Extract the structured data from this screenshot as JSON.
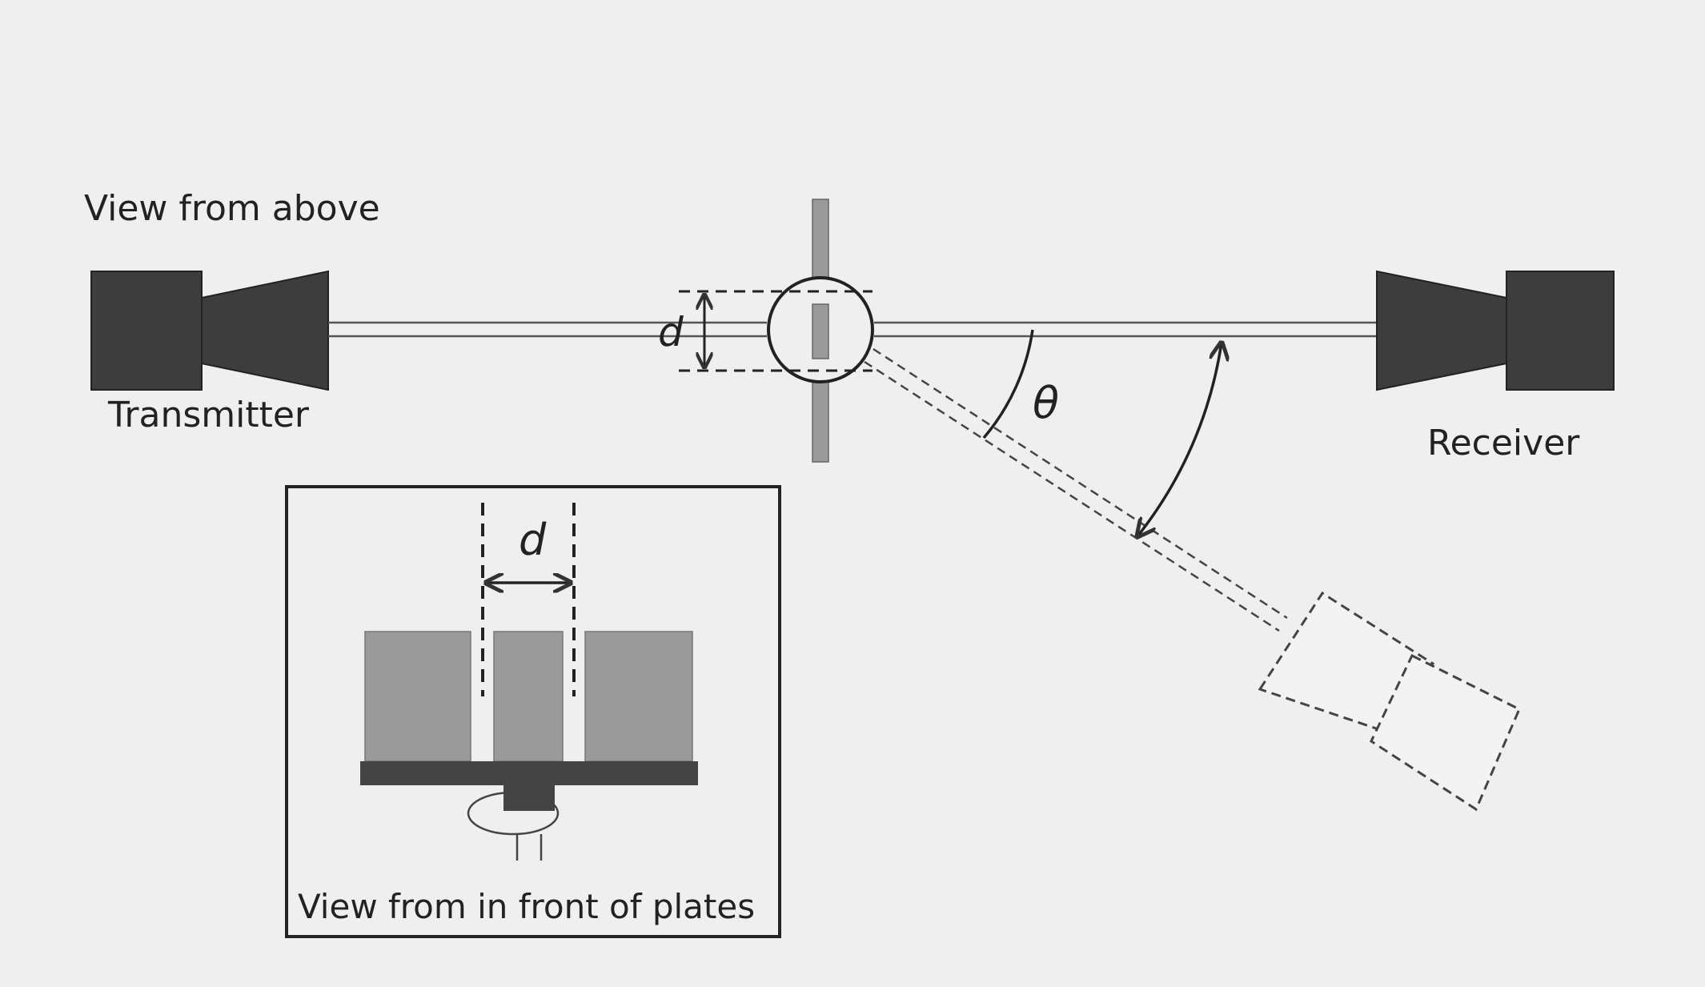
{
  "diagram": {
    "top_view_label": "View from above",
    "transmitter_label": "Transmitter",
    "receiver_label": "Receiver",
    "spacing_label": "d",
    "angle_label": "θ",
    "front_view_label": "View from in front of plates",
    "front_spacing_label": "d"
  },
  "colors": {
    "background": "#efefef",
    "horn_dark": "#3d3d3d",
    "plate": "#9a9a9a",
    "base": "#444444",
    "line": "#333333",
    "ghost_fill": "#f3f3f3"
  }
}
